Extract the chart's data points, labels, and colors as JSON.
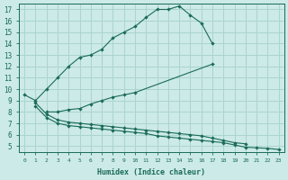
{
  "background_color": "#cceae7",
  "grid_color": "#aad4d0",
  "line_color": "#1a6b5a",
  "xlabel": "Humidex (Indice chaleur)",
  "xlim": [
    -0.5,
    23.5
  ],
  "ylim": [
    4.5,
    17.5
  ],
  "xticks": [
    0,
    1,
    2,
    3,
    4,
    5,
    6,
    7,
    8,
    9,
    10,
    11,
    12,
    13,
    14,
    15,
    16,
    17,
    18,
    19,
    20,
    21,
    22,
    23
  ],
  "yticks": [
    5,
    6,
    7,
    8,
    9,
    10,
    11,
    12,
    13,
    14,
    15,
    16,
    17
  ],
  "curve1_x": [
    0,
    1,
    2,
    3,
    4,
    5,
    6,
    7,
    8,
    9,
    10,
    11,
    12,
    13,
    14,
    15,
    16,
    17
  ],
  "curve1_y": [
    9.5,
    9.0,
    10.0,
    11.0,
    12.0,
    12.8,
    13.0,
    13.5,
    14.5,
    15.0,
    15.5,
    16.3,
    17.0,
    17.0,
    17.3,
    16.5,
    15.8,
    14.0
  ],
  "curve2_x": [
    2,
    3,
    4,
    5,
    6,
    7,
    8,
    9,
    10,
    17
  ],
  "curve2_y": [
    8.0,
    8.0,
    8.2,
    8.3,
    8.7,
    9.0,
    9.3,
    9.5,
    9.7,
    12.2
  ],
  "curve3_x": [
    1,
    2,
    3,
    4,
    5,
    6,
    7,
    8,
    9,
    10,
    11,
    12,
    13,
    14,
    15,
    16,
    17,
    18,
    19,
    20
  ],
  "curve3_y": [
    8.8,
    7.8,
    7.3,
    7.1,
    7.0,
    6.9,
    6.8,
    6.7,
    6.6,
    6.5,
    6.4,
    6.3,
    6.2,
    6.1,
    6.0,
    5.9,
    5.7,
    5.5,
    5.3,
    5.2
  ],
  "curve4_x": [
    1,
    2,
    3,
    4,
    5,
    6,
    7,
    8,
    9,
    10,
    11,
    12,
    13,
    14,
    15,
    16,
    17,
    18,
    19,
    20,
    21,
    22,
    23
  ],
  "curve4_y": [
    8.5,
    7.5,
    7.0,
    6.8,
    6.7,
    6.6,
    6.5,
    6.4,
    6.3,
    6.2,
    6.1,
    5.9,
    5.8,
    5.7,
    5.6,
    5.5,
    5.4,
    5.3,
    5.1,
    4.9,
    4.85,
    4.8,
    4.7
  ]
}
